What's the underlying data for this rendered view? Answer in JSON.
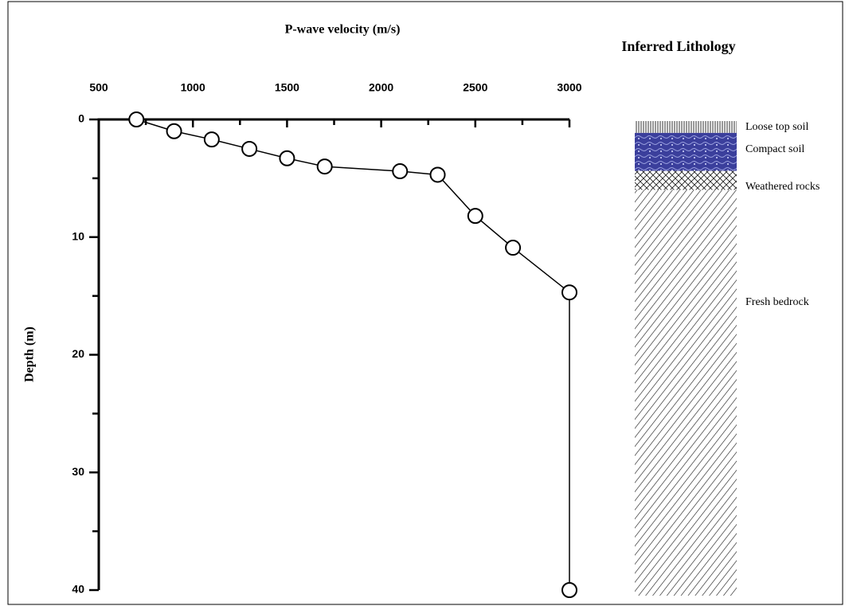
{
  "chart_data": {
    "type": "scatter",
    "title": "P-wave velocity (m/s)",
    "y_label": "Depth (m)",
    "x": [
      700,
      900,
      1100,
      1300,
      1500,
      1700,
      2100,
      2300,
      2500,
      2700,
      3000,
      3000
    ],
    "values": [
      0,
      1,
      1.7,
      2.5,
      3.3,
      4,
      4.4,
      4.7,
      8.2,
      10.9,
      14.7,
      40
    ],
    "xlim": [
      500,
      3000
    ],
    "xticks": [
      500,
      1000,
      1500,
      2000,
      2500,
      3000
    ],
    "xminor_ticks": [
      750,
      1250,
      1750,
      2250,
      2750
    ],
    "ylim": [
      0,
      40
    ],
    "yticks": [
      0,
      10,
      20,
      30,
      40
    ],
    "yminor_ticks": [
      5,
      15,
      25,
      35
    ],
    "y_inverted": true,
    "x_axis_position": "top",
    "color": "#000000",
    "lithology": {
      "title": "Inferred Lithology",
      "layers": [
        {
          "name": "Loose top soil",
          "top": 0,
          "bottom": 1
        },
        {
          "name": "Compact soil",
          "top": 1,
          "bottom": 4.2
        },
        {
          "name": "Weathered rocks",
          "top": 4.2,
          "bottom": 5.8
        },
        {
          "name": "Fresh bedrock",
          "top": 5.8,
          "bottom": 40
        }
      ]
    }
  }
}
